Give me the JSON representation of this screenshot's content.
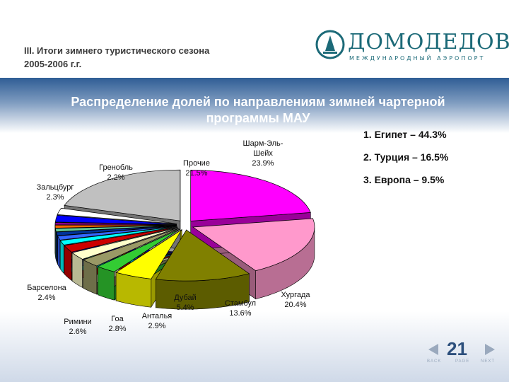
{
  "header": {
    "title_line1": "III. Итоги зимнего туристического сезона",
    "title_line2": "2005-2006 г.г.",
    "logo_name": "ДОМОДЕДОВО",
    "logo_sub": "МЕЖДУНАРОДНЫЙ АЭРОПОРТ"
  },
  "side_list": [
    "1. Египет – 44.3%",
    "2. Турция – 16.5%",
    "3. Европа – 9.5%"
  ],
  "footer": {
    "page": "21",
    "back": "BACK",
    "page_word": "PAGE",
    "next": "NEXT"
  },
  "colors": {
    "accent": "#2f5d95",
    "logo": "#1c6a78"
  },
  "chart_data": {
    "type": "pie",
    "title_line1": "Распределение долей по направлениям зимней чартерной",
    "title_line2": "программы МАУ",
    "slices": [
      {
        "label": "Шарм-Эль-Шейх",
        "value": 23.9,
        "color": "#ff00ff",
        "display": "23.9%"
      },
      {
        "label": "Хургада",
        "value": 20.4,
        "color": "#ff99cc",
        "display": "20.4%"
      },
      {
        "label": "Стамбул",
        "value": 13.6,
        "color": "#808000",
        "display": "13.6%"
      },
      {
        "label": "Дубай",
        "value": 5.4,
        "color": "#ffff00",
        "display": "5.4%"
      },
      {
        "label": "Анталья",
        "value": 2.9,
        "color": "#33cc33",
        "display": "2.9%"
      },
      {
        "label": "Гоа",
        "value": 2.8,
        "color": "#999966",
        "display": "2.8%"
      },
      {
        "label": "Римини",
        "value": 2.6,
        "color": "#ffffcc",
        "display": "2.6%"
      },
      {
        "label": "Барселона",
        "value": 2.4,
        "color": "#cc0000",
        "display": "2.4%"
      },
      {
        "label": "",
        "value": 1.6,
        "color": "#00ffff"
      },
      {
        "label": "",
        "value": 1.4,
        "color": "#3366ff"
      },
      {
        "label": "",
        "value": 1.2,
        "color": "#003399"
      },
      {
        "label": "",
        "value": 1.1,
        "color": "#66cc99"
      },
      {
        "label": "",
        "value": 1.0,
        "color": "#ff6600"
      },
      {
        "label": "",
        "value": 0.8,
        "color": "#990099"
      },
      {
        "label": "Зальцбург",
        "value": 2.3,
        "color": "#0000ff",
        "display": "2.3%"
      },
      {
        "label": "Гренобль",
        "value": 2.2,
        "color": "#ffffff",
        "display": "2.2%"
      },
      {
        "label": "Прочие",
        "value": 21.5,
        "color": "#c0c0c0",
        "display": "21.5%"
      }
    ]
  }
}
